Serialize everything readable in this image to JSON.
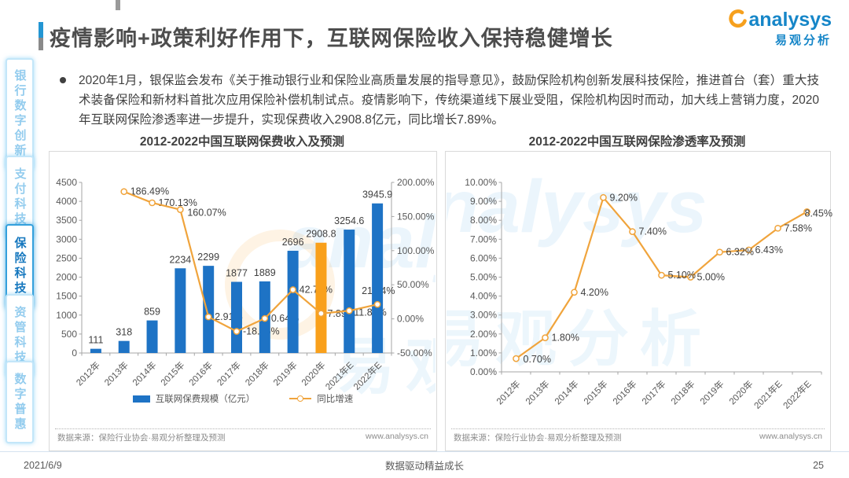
{
  "header": {
    "title": "疫情影响+政策利好作用下，互联网保险收入保持稳健增长",
    "logo": {
      "en": "analysys",
      "cn": "易观分析"
    }
  },
  "sidebar": {
    "items": [
      {
        "label": "银行数字创新",
        "active": false
      },
      {
        "label": "支付科技",
        "active": false
      },
      {
        "label": "保险科技",
        "active": true
      },
      {
        "label": "资管科技",
        "active": false
      },
      {
        "label": "数字普惠",
        "active": false
      }
    ]
  },
  "bullet": {
    "text": "2020年1月，银保监会发布《关于推动银行业和保险业高质量发展的指导意见》，鼓励保险机构创新发展科技保险，推进首台（套）重大技术装备保险和新材料首批次应用保险补偿机制试点。疫情影响下，传统渠道线下展业受阻，保险机构因时而动，加大线上营销力度，2020年互联网保险渗透率进一步提升，实现保费收入2908.8亿元，同比增长7.89%。"
  },
  "charts": {
    "left": {
      "source": "数据来源：保险行业协会·易观分析整理及预测",
      "site": "www.analysys.cn"
    },
    "right": {
      "source": "数据来源：保险行业协会·易观分析整理及预测",
      "site": "www.analysys.cn"
    },
    "watermark": {
      "en": "analysys",
      "cn": "易观分析"
    }
  },
  "footer": {
    "date": "2021/6/9",
    "slogan": "数据驱动精益成长",
    "page": "25"
  },
  "chart_data": [
    {
      "type": "bar",
      "title": "2012-2022中国互联网保费收入及预测",
      "categories": [
        "2012年",
        "2013年",
        "2014年",
        "2015年",
        "2016年",
        "2017年",
        "2018年",
        "2019年",
        "2020年",
        "2021年E",
        "2022年E"
      ],
      "series": [
        {
          "name": "互联网保费规模（亿元）",
          "type": "bar",
          "axis": "left",
          "values": [
            111,
            318,
            859,
            2234,
            2299,
            1877,
            1889,
            2696,
            2908.8,
            3254.6,
            3945.9
          ],
          "labels": [
            "111",
            "318",
            "859",
            "2234",
            "2299",
            "1877",
            "1889",
            "2696",
            "2908.8",
            "3254.6",
            "3945.9"
          ],
          "highlight_index": 8
        },
        {
          "name": "同比增速",
          "type": "line",
          "axis": "right",
          "values": [
            null,
            186.49,
            170.13,
            160.07,
            2.91,
            -18.36,
            0.64,
            42.72,
            7.89,
            11.89,
            21.24
          ],
          "labels": [
            null,
            "186.49%",
            "170.13%",
            "160.07%",
            "2.91%",
            "-18.36%",
            "0.64%",
            "42.72%",
            "7.89%",
            "11.89%",
            "21.24%"
          ]
        }
      ],
      "axes": {
        "left": {
          "min": 0,
          "max": 4500,
          "step": 500
        },
        "right": {
          "min": -50,
          "max": 200,
          "step": 50,
          "suffix": "%",
          "decimals": 2
        }
      },
      "colors": {
        "bar": "#1e73c5",
        "bar_highlight": "#f9a01b",
        "line": "#f0a43c"
      },
      "legend_position": "bottom",
      "grid": false
    },
    {
      "type": "line",
      "title": "2012-2022中国互联网保险渗透率及预测",
      "categories": [
        "2012年",
        "2013年",
        "2014年",
        "2015年",
        "2016年",
        "2017年",
        "2018年",
        "2019年",
        "2020年",
        "2021年E",
        "2022年E"
      ],
      "series": [
        {
          "name": "互联网保险渗透率",
          "type": "line",
          "values": [
            0.7,
            1.8,
            4.2,
            9.2,
            7.4,
            5.1,
            5.0,
            6.32,
            6.43,
            7.58,
            8.45
          ],
          "labels": [
            "0.70%",
            "1.80%",
            "4.20%",
            "9.20%",
            "7.40%",
            "5.10%",
            "5.00%",
            "6.32%",
            "6.43%",
            "7.58%",
            "8.45%"
          ]
        }
      ],
      "axes": {
        "left": {
          "min": 0,
          "max": 10,
          "step": 1,
          "suffix": "%",
          "decimals": 2
        }
      },
      "colors": {
        "line": "#f0a43c"
      },
      "grid": false
    }
  ]
}
